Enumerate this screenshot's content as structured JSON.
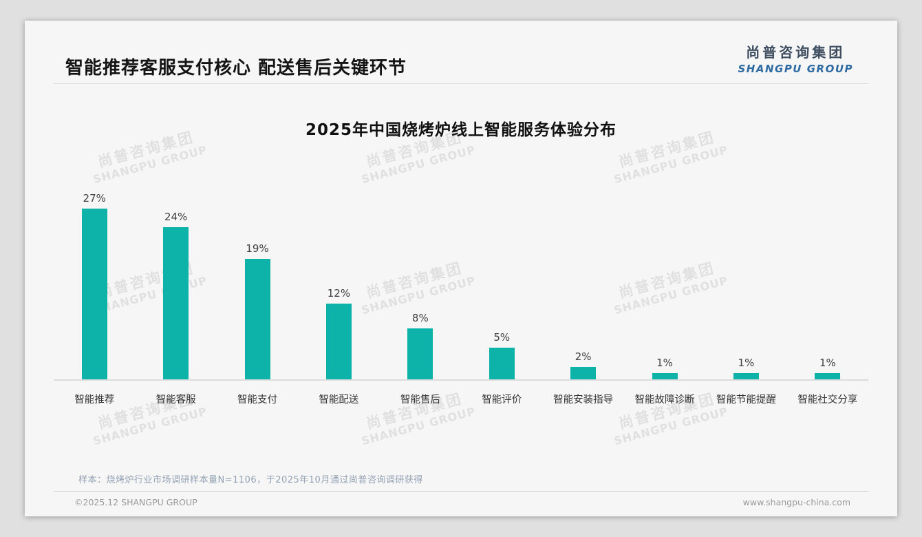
{
  "header": {
    "title": "智能推荐客服支付核心 配送售后关键环节"
  },
  "logo": {
    "cn": "尚普咨询集团",
    "en": "SHANGPU GROUP"
  },
  "watermark": {
    "line1": "尚普咨询集团",
    "line2": "SHANGPU GROUP"
  },
  "chart_data": {
    "type": "bar",
    "title": "2025年中国烧烤炉线上智能服务体验分布",
    "categories": [
      "智能推荐",
      "智能客服",
      "智能支付",
      "智能配送",
      "智能售后",
      "智能评价",
      "智能安装指导",
      "智能故障诊断",
      "智能节能提醒",
      "智能社交分享"
    ],
    "values": [
      27,
      24,
      19,
      12,
      8,
      5,
      2,
      1,
      1,
      1
    ],
    "value_labels": [
      "27%",
      "24%",
      "19%",
      "12%",
      "8%",
      "5%",
      "2%",
      "1%",
      "1%",
      "1%"
    ],
    "unit": "%",
    "bar_color": "#0db3a9",
    "ylim": [
      0,
      30
    ],
    "grid": false,
    "legend": "none",
    "xlabel": "",
    "ylabel": ""
  },
  "footnote": {
    "sample_note": "样本：烧烤炉行业市场调研样本量N=1106，于2025年10月通过尚普咨询调研获得"
  },
  "footer": {
    "copyright": "©2025.12 SHANGPU GROUP",
    "website": "www.shangpu-china.com"
  }
}
